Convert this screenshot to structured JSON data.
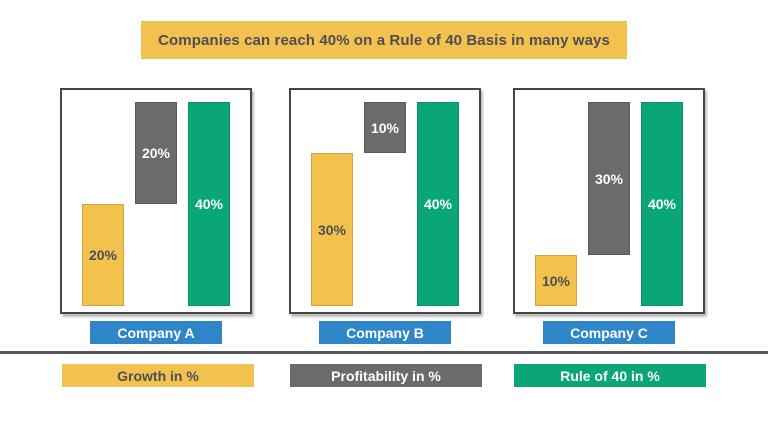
{
  "title": {
    "text": "Companies can reach 40% on a Rule of 40 Basis in many ways"
  },
  "chart_data": {
    "type": "bar",
    "subtype": "waterfall-comparison",
    "title": "Companies can reach 40% on a Rule of 40 Basis in many ways",
    "categories": [
      "Company A",
      "Company B",
      "Company C"
    ],
    "series": [
      {
        "name": "Growth in %",
        "values": [
          20,
          30,
          10
        ],
        "color": "#F2C14E"
      },
      {
        "name": "Profitability in %",
        "values": [
          20,
          10,
          30
        ],
        "color": "#6B6B6B"
      },
      {
        "name": "Rule of 40 in %",
        "values": [
          40,
          40,
          40
        ],
        "color": "#0BA678"
      }
    ],
    "ylim": [
      0,
      40
    ],
    "grid": false,
    "legend_position": "bottom",
    "annotations": [
      "Growth bar rises from 0; Profitability bar floats on top of Growth so the stack reaches 40%",
      "Rule of 40 bar is a separate full-height 40% bar in each panel"
    ]
  },
  "panels": [
    {
      "company": "Company A",
      "growth": {
        "label": "20%",
        "value": 20
      },
      "profitability": {
        "label": "20%",
        "value": 20
      },
      "rule_of_40": {
        "label": "40%",
        "value": 40
      }
    },
    {
      "company": "Company B",
      "growth": {
        "label": "30%",
        "value": 30
      },
      "profitability": {
        "label": "10%",
        "value": 10
      },
      "rule_of_40": {
        "label": "40%",
        "value": 40
      }
    },
    {
      "company": "Company C",
      "growth": {
        "label": "10%",
        "value": 10
      },
      "profitability": {
        "label": "30%",
        "value": 30
      },
      "rule_of_40": {
        "label": "40%",
        "value": 40
      }
    }
  ],
  "legend": {
    "growth_label": "Growth in %",
    "profitability_label": "Profitability in %",
    "rule_of_40_label": "Rule of 40 in %"
  },
  "colors": {
    "growth": "#F2C14E",
    "profitability": "#6B6B6B",
    "rule_of_40": "#0BA678",
    "company_badge": "#2E86C8",
    "banner_bg": "#F2C14E",
    "text_dark": "#4D4E56",
    "divider": "#55565A"
  }
}
